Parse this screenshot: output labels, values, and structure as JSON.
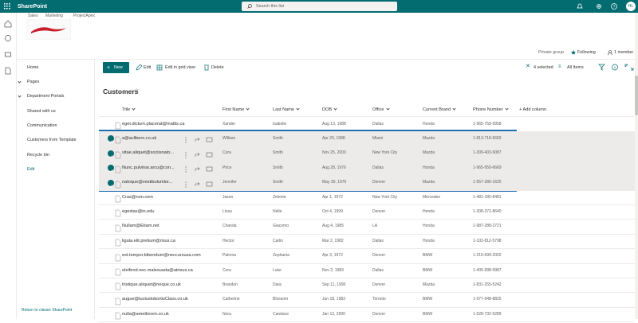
{
  "topbar": {
    "app": "SharePoint",
    "search": "Search this list",
    "avatar": "HL"
  },
  "tabs": [
    "Sales",
    "Marketing",
    "ProjectApex"
  ],
  "site": {
    "privacy": "Private group",
    "follow": "Following",
    "members": "1 member"
  },
  "nav": {
    "items": [
      "Home",
      "Pages",
      "Department Portals",
      "Shared with us",
      "Communication",
      "Customers from Template",
      "Recycle bin"
    ],
    "edit": "Edit",
    "footer": "Return to classic SharePoint"
  },
  "commands": {
    "new": "New",
    "edit": "Edit",
    "grid": "Edit in grid view",
    "delete": "Delete",
    "selected": "4 selected",
    "view": "All Items"
  },
  "list": {
    "title": "Customers",
    "columns": [
      "Title",
      "First Name",
      "Last Name",
      "DOB",
      "Office",
      "Current Brand",
      "Phone Number",
      "+ Add column"
    ],
    "rows": [
      {
        "selected": false,
        "cells": [
          "eget.dictum.placerat@mattis.ca",
          "Xander",
          "Isabelle",
          "Aug 13, 1988",
          "Dallas",
          "Honda",
          "1-965-759-5958"
        ]
      },
      {
        "selected": true,
        "cells": [
          "a@aclibero.co.uk",
          "William",
          "Smith",
          "Apr 20, 1988",
          "Miami",
          "Mazda",
          "1-813-718-6669"
        ]
      },
      {
        "selected": true,
        "cells": [
          "vitae.aliquet@sociisnato...",
          "Cora",
          "Smith",
          "Nov 25, 2000",
          "New York City",
          "Mazda",
          "1-309-403-9087"
        ]
      },
      {
        "selected": true,
        "cells": [
          "Nunc.pulvinar.arcu@con...",
          "Price",
          "Smith",
          "Aug 28, 1976",
          "Dallas",
          "Honda",
          "1-965-950-6669"
        ]
      },
      {
        "selected": true,
        "cells": [
          "natoque@vestibulumlor...",
          "Jennifer",
          "Smith",
          "May 30, 1976",
          "Denver",
          "Mazda",
          "1-557-280-1625"
        ]
      },
      {
        "selected": false,
        "cells": [
          "Cras@non.com",
          "Jason",
          "Zelenia",
          "Apr 1, 1972",
          "New York City",
          "Mercedes",
          "1-481-185-8481"
        ]
      },
      {
        "selected": false,
        "cells": [
          "egestas@in.edu",
          "Linus",
          "Nelle",
          "Oct 4, 1999",
          "Denver",
          "Honda",
          "1-308-372-8640"
        ]
      },
      {
        "selected": false,
        "cells": [
          "Nullam@Etiam.net",
          "Chanda",
          "Giacomo",
          "Aug 4, 1985",
          "LA",
          "Honda",
          "1-987-288-2721"
        ]
      },
      {
        "selected": false,
        "cells": [
          "ligula.elit.pretium@risus.ca",
          "Hector",
          "Carlin",
          "Mar 2, 1982",
          "Dallas",
          "Honda",
          "1-102-812-5798"
        ]
      },
      {
        "selected": false,
        "cells": [
          "est.tempor.bibendum@neccursusa.com",
          "Paloma",
          "Zephania",
          "Apr 3, 1972",
          "Denver",
          "BMW",
          "1-215-699-2002"
        ]
      },
      {
        "selected": false,
        "cells": [
          "eleifend.nec.malesuada@atrisus.ca",
          "Cora",
          "Luke",
          "Nov 2, 1983",
          "Dallas",
          "BMW",
          "1-405-998-9987"
        ]
      },
      {
        "selected": false,
        "cells": [
          "tristique.aliquet@neque.co.uk",
          "Brandon",
          "Dara",
          "Sep 11, 1990",
          "Denver",
          "Mazda",
          "1-831-255-5242"
        ]
      },
      {
        "selected": false,
        "cells": [
          "augue@luctuslobortisClass.co.uk",
          "Catherine",
          "Blossom",
          "Jun 18, 1983",
          "Toronto",
          "BMW",
          "1-977-948-8825"
        ]
      },
      {
        "selected": false,
        "cells": [
          "nulla@ametlorem.co.uk",
          "Nora",
          "Candace",
          "Jan 12, 2000",
          "Denver",
          "BMW",
          "1-528-732-5289"
        ]
      }
    ]
  }
}
